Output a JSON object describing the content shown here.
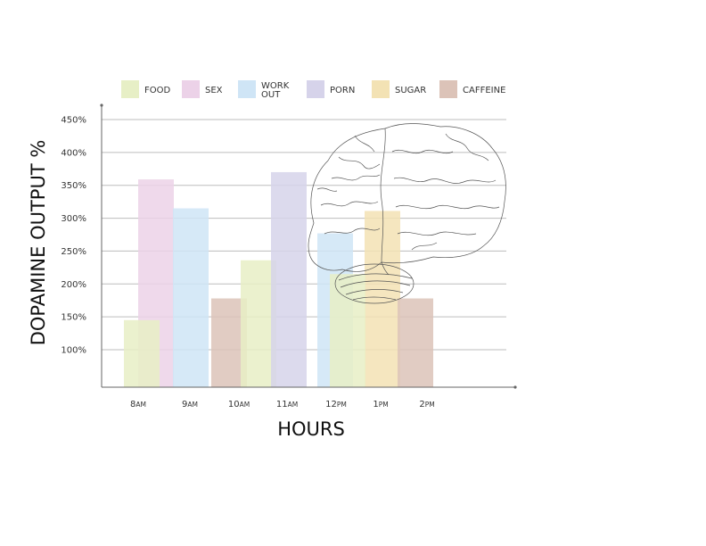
{
  "chart_data": {
    "type": "bar",
    "xlabel": "HOURS",
    "ylabel": "DOPAMINE OUTPUT %",
    "y_ticks": [
      "100%",
      "150%",
      "200%",
      "250%",
      "300%",
      "350%",
      "400%",
      "450%"
    ],
    "ylim": [
      50,
      470
    ],
    "grid": true,
    "legend_position": "top",
    "categories": [
      {
        "hour": "8",
        "suffix": "AM"
      },
      {
        "hour": "9",
        "suffix": "AM"
      },
      {
        "hour": "10",
        "suffix": "AM"
      },
      {
        "hour": "11",
        "suffix": "AM"
      },
      {
        "hour": "12",
        "suffix": "PM"
      },
      {
        "hour": "1",
        "suffix": "PM"
      },
      {
        "hour": "2",
        "suffix": "PM"
      }
    ],
    "series": [
      {
        "name": [
          "FOOD"
        ],
        "color": "#e7efc6",
        "bars": [
          {
            "x": "8AM",
            "value": 145
          },
          {
            "x": "11AM",
            "value": 236
          },
          {
            "x": "12PM",
            "value": 215
          }
        ]
      },
      {
        "name": [
          "SEX"
        ],
        "color": "#ecd2e8",
        "bars": [
          {
            "x": "8AM",
            "value": 359
          }
        ]
      },
      {
        "name": [
          "WORK",
          "OUT"
        ],
        "color": "#cfe5f6",
        "bars": [
          {
            "x": "9AM",
            "value": 315
          },
          {
            "x": "12PM",
            "value": 277
          }
        ]
      },
      {
        "name": [
          "PORN"
        ],
        "color": "#d6d3ea",
        "bars": [
          {
            "x": "11AM",
            "value": 370
          }
        ]
      },
      {
        "name": [
          "SUGAR"
        ],
        "color": "#f3e2b4",
        "bars": [
          {
            "x": "1PM",
            "value": 311
          }
        ]
      },
      {
        "name": [
          "CAFFEINE"
        ],
        "color": "#dcc3b8",
        "bars": [
          {
            "x": "10AM",
            "value": 178
          },
          {
            "x": "2PM",
            "value": 178
          }
        ]
      }
    ]
  },
  "illustration": {
    "icon": "brain-outline-icon"
  }
}
